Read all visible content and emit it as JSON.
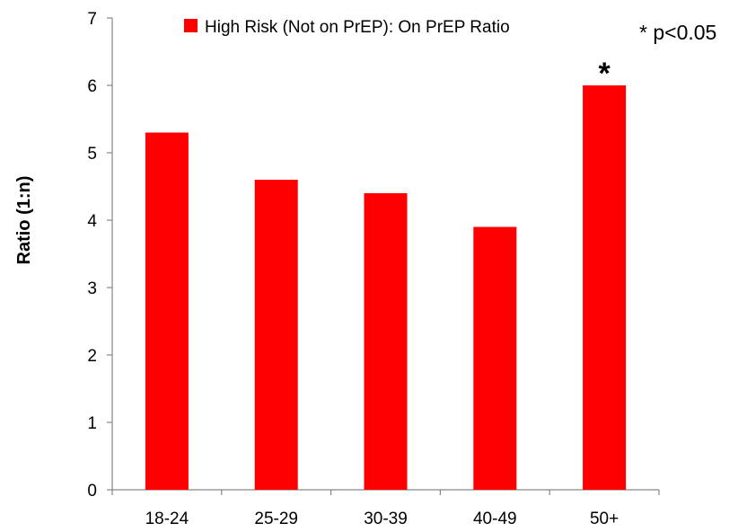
{
  "chart_data": {
    "type": "bar",
    "categories": [
      "18-24",
      "25-29",
      "30-39",
      "40-49",
      "50+"
    ],
    "series": [
      {
        "name": "High Risk (Not on PrEP): On PrEP Ratio",
        "values": [
          5.3,
          4.6,
          4.4,
          3.9,
          6.0
        ],
        "color": "#ff0000"
      }
    ],
    "ylabel": "Ratio (1:n)",
    "xlabel": "",
    "ylim": [
      0,
      7
    ],
    "yticks": [
      0,
      1,
      2,
      3,
      4,
      5,
      6,
      7
    ],
    "grid": false,
    "legend_position": "top",
    "significance_marker": "*",
    "significant_categories": [
      "50+"
    ],
    "note": "* p<0.05"
  }
}
